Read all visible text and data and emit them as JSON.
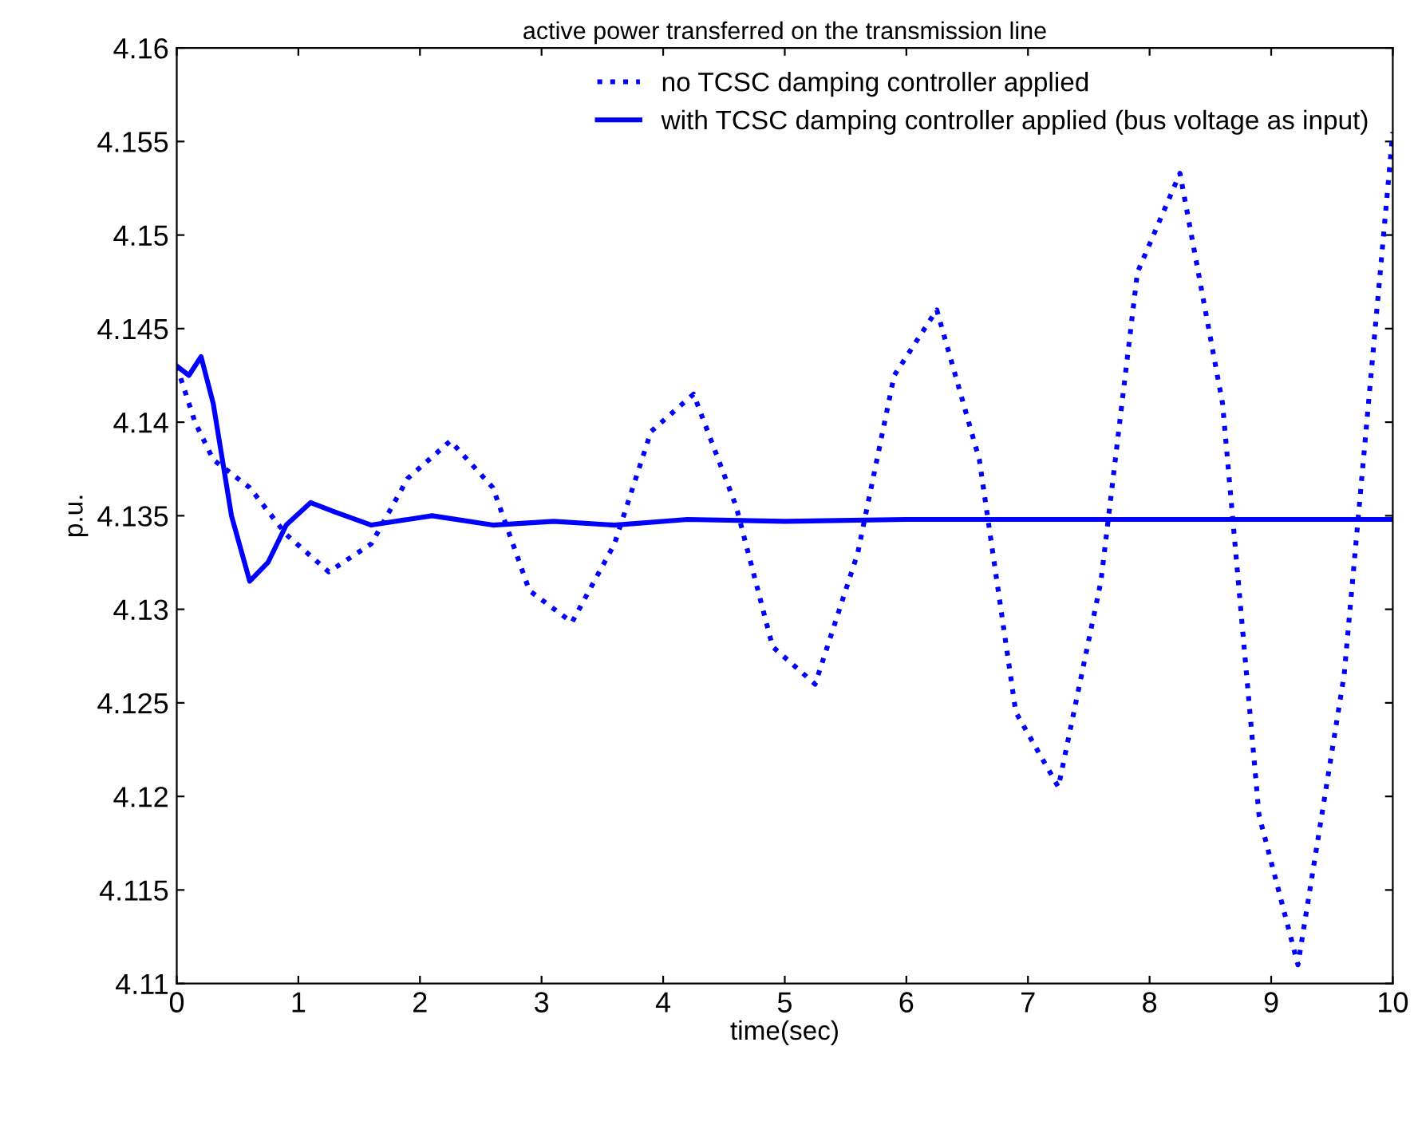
{
  "chart_data": {
    "type": "line",
    "title": "active power transferred on the transmission line",
    "xlabel": "time(sec)",
    "ylabel": "p.u.",
    "xlim": [
      0,
      10
    ],
    "ylim": [
      4.11,
      4.16
    ],
    "xticks": [
      0,
      1,
      2,
      3,
      4,
      5,
      6,
      7,
      8,
      9,
      10
    ],
    "yticks": [
      4.11,
      4.115,
      4.12,
      4.125,
      4.13,
      4.135,
      4.14,
      4.145,
      4.15,
      4.155,
      4.16
    ],
    "grid": false,
    "legend": "top right",
    "marker": "none",
    "series": [
      {
        "name": "no TCSC damping controller applied",
        "color": "#0000ff",
        "line_style": "dotted",
        "x": [
          0,
          0.15,
          0.3,
          0.6,
          0.9,
          1.25,
          1.6,
          1.9,
          2.25,
          2.6,
          2.9,
          3.25,
          3.6,
          3.9,
          4.25,
          4.6,
          4.9,
          5.25,
          5.6,
          5.9,
          6.25,
          6.6,
          6.9,
          7.25,
          7.6,
          7.9,
          8.25,
          8.6,
          8.9,
          9.22,
          9.6,
          10
        ],
        "values": [
          4.143,
          4.14,
          4.138,
          4.1365,
          4.134,
          4.132,
          4.1335,
          4.137,
          4.139,
          4.1365,
          4.131,
          4.1293,
          4.1335,
          4.1395,
          4.1415,
          4.1355,
          4.128,
          4.126,
          4.133,
          4.1425,
          4.146,
          4.138,
          4.1245,
          4.1205,
          4.1315,
          4.148,
          4.1533,
          4.141,
          4.119,
          4.111,
          4.1265,
          4.1555
        ]
      },
      {
        "name": "with TCSC damping controller applied (bus voltage as input)",
        "color": "#0000ff",
        "line_style": "solid",
        "x": [
          0,
          0.1,
          0.2,
          0.3,
          0.45,
          0.6,
          0.75,
          0.9,
          1.1,
          1.3,
          1.6,
          2.1,
          2.6,
          3.1,
          3.6,
          4.2,
          5,
          6,
          7,
          8,
          9,
          10
        ],
        "values": [
          4.143,
          4.1425,
          4.1435,
          4.141,
          4.135,
          4.1315,
          4.1325,
          4.1345,
          4.1357,
          4.1352,
          4.1345,
          4.135,
          4.1345,
          4.1347,
          4.1345,
          4.1348,
          4.1347,
          4.1348,
          4.1348,
          4.1348,
          4.1348,
          4.1348
        ]
      }
    ]
  }
}
